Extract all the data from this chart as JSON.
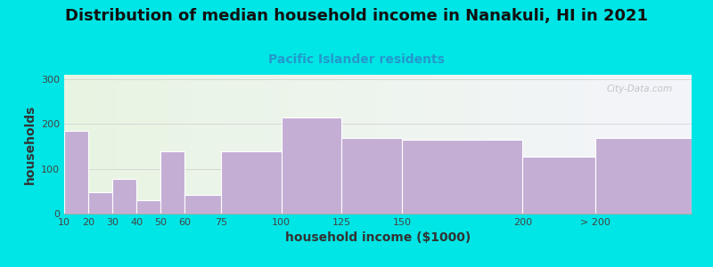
{
  "title": "Distribution of median household income in Nanakuli, HI in 2021",
  "subtitle": "Pacific Islander residents",
  "xlabel": "household income ($1000)",
  "ylabel": "households",
  "background_outer": "#00e5e5",
  "background_inner_left": "#e8f5e2",
  "background_inner_right": "#f4f4fb",
  "bar_color": "#c4aed4",
  "bar_edge_color": "#ffffff",
  "watermark": "City-Data.com",
  "title_fontsize": 13,
  "subtitle_fontsize": 10,
  "axis_label_fontsize": 10,
  "tick_fontsize": 8,
  "ylim": [
    0,
    310
  ],
  "yticks": [
    0,
    100,
    200,
    300
  ],
  "bar_edges": [
    10,
    20,
    30,
    40,
    50,
    60,
    75,
    100,
    125,
    150,
    200,
    230,
    270
  ],
  "tick_labels": [
    "10",
    "20",
    "30",
    "40",
    "50",
    "60",
    "75",
    "100",
    "125",
    "150",
    "200",
    "> 200"
  ],
  "values": [
    185,
    48,
    78,
    30,
    140,
    42,
    140,
    215,
    168,
    165,
    128,
    168
  ]
}
